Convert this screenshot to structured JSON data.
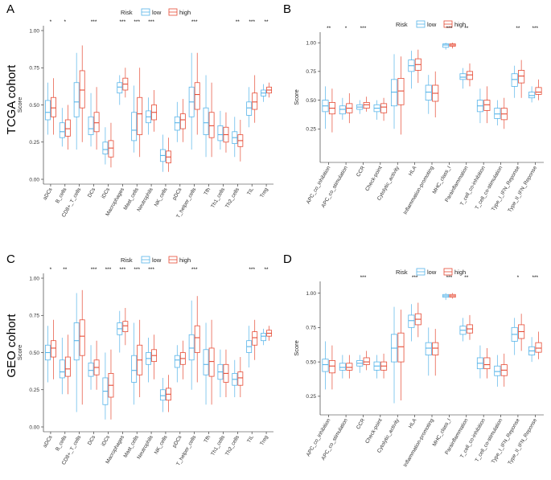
{
  "cohort_labels": [
    "TCGA cohort",
    "GEO cohort"
  ],
  "colors": {
    "low": "#56B4E9",
    "high": "#E64B35"
  },
  "chart_data": [
    {
      "panel": "A",
      "type": "box",
      "ylabel": "Score",
      "ylim": [
        0,
        1
      ],
      "yticks": [
        "0.00",
        "0.25",
        "0.50",
        "0.75",
        "1.00"
      ],
      "legend": {
        "title": "Risk",
        "entries": [
          "low",
          "high"
        ],
        "placement": "top"
      },
      "categories": [
        "aDCs",
        "B_cells",
        "CD8+_T_cells",
        "DCs",
        "iDCs",
        "Macrophages",
        "Mast_cells",
        "Neutrophils",
        "NK_cells",
        "pDCs",
        "T_helper_cells",
        "Tfh",
        "Th1_cells",
        "Th2_cells",
        "TIL",
        "Treg"
      ],
      "significance": [
        "*",
        "*",
        "",
        "***",
        "",
        "***",
        "***",
        "***",
        "",
        "",
        "***",
        "",
        "",
        "**",
        "***",
        "**"
      ],
      "series": [
        {
          "name": "low",
          "boxes": [
            [
              0.3,
              0.4,
              0.45,
              0.53,
              0.65
            ],
            [
              0.22,
              0.28,
              0.32,
              0.38,
              0.48
            ],
            [
              0.2,
              0.42,
              0.52,
              0.65,
              0.85
            ],
            [
              0.22,
              0.3,
              0.34,
              0.42,
              0.58
            ],
            [
              0.1,
              0.17,
              0.2,
              0.25,
              0.35
            ],
            [
              0.5,
              0.58,
              0.62,
              0.65,
              0.7
            ],
            [
              0.18,
              0.26,
              0.33,
              0.45,
              0.63
            ],
            [
              0.3,
              0.38,
              0.42,
              0.46,
              0.55
            ],
            [
              0.05,
              0.12,
              0.16,
              0.2,
              0.3
            ],
            [
              0.25,
              0.33,
              0.38,
              0.42,
              0.52
            ],
            [
              0.2,
              0.42,
              0.52,
              0.62,
              0.85
            ],
            [
              0.15,
              0.3,
              0.38,
              0.48,
              0.7
            ],
            [
              0.2,
              0.26,
              0.3,
              0.36,
              0.46
            ],
            [
              0.15,
              0.24,
              0.28,
              0.32,
              0.42
            ],
            [
              0.35,
              0.43,
              0.48,
              0.52,
              0.62
            ],
            [
              0.52,
              0.56,
              0.58,
              0.6,
              0.64
            ]
          ]
        },
        {
          "name": "high",
          "boxes": [
            [
              0.3,
              0.42,
              0.48,
              0.55,
              0.68
            ],
            [
              0.2,
              0.29,
              0.34,
              0.4,
              0.5
            ],
            [
              0.25,
              0.48,
              0.6,
              0.73,
              0.9
            ],
            [
              0.2,
              0.32,
              0.38,
              0.45,
              0.62
            ],
            [
              0.08,
              0.15,
              0.21,
              0.26,
              0.38
            ],
            [
              0.55,
              0.6,
              0.64,
              0.68,
              0.75
            ],
            [
              0.15,
              0.3,
              0.44,
              0.55,
              0.75
            ],
            [
              0.32,
              0.4,
              0.45,
              0.5,
              0.6
            ],
            [
              0.05,
              0.11,
              0.15,
              0.19,
              0.28
            ],
            [
              0.25,
              0.34,
              0.4,
              0.44,
              0.54
            ],
            [
              0.3,
              0.47,
              0.57,
              0.65,
              0.85
            ],
            [
              0.15,
              0.28,
              0.36,
              0.45,
              0.65
            ],
            [
              0.18,
              0.25,
              0.3,
              0.35,
              0.45
            ],
            [
              0.12,
              0.22,
              0.26,
              0.3,
              0.4
            ],
            [
              0.38,
              0.47,
              0.52,
              0.58,
              0.7
            ],
            [
              0.55,
              0.58,
              0.6,
              0.62,
              0.65
            ]
          ]
        }
      ]
    },
    {
      "panel": "B",
      "type": "box",
      "ylabel": "Score",
      "ylim": [
        0,
        1.05
      ],
      "yticks": [
        "0.25",
        "0.50",
        "0.75",
        "1.00"
      ],
      "legend": {
        "title": "Risk",
        "entries": [
          "low",
          "high"
        ],
        "placement": "top"
      },
      "categories": [
        "APC_co_inhibition",
        "APC_co_stimulation",
        "CCR",
        "Check-point",
        "Cytolytic_activity",
        "HLA",
        "Inflammation-promoting",
        "MHC_class_I",
        "Parainflammation",
        "T_cell_co-inhibition",
        "T_cell_co-stimulation",
        "Type_I_IFN_Reponse",
        "Type_II_IFN_Reponse"
      ],
      "significance": [
        "**",
        "*",
        "***",
        "",
        "",
        "",
        "",
        "***",
        "**",
        "",
        "",
        "**",
        "***"
      ],
      "series": [
        {
          "name": "low",
          "boxes": [
            [
              0.25,
              0.4,
              0.45,
              0.5,
              0.62
            ],
            [
              0.33,
              0.38,
              0.42,
              0.45,
              0.52
            ],
            [
              0.38,
              0.42,
              0.44,
              0.46,
              0.5
            ],
            [
              0.33,
              0.4,
              0.43,
              0.46,
              0.5
            ],
            [
              0.25,
              0.45,
              0.57,
              0.68,
              0.9
            ],
            [
              0.6,
              0.75,
              0.8,
              0.85,
              0.93
            ],
            [
              0.38,
              0.5,
              0.57,
              0.63,
              0.72
            ],
            [
              0.94,
              0.96,
              0.98,
              0.99,
              1.0
            ],
            [
              0.6,
              0.68,
              0.7,
              0.73,
              0.78
            ],
            [
              0.3,
              0.4,
              0.45,
              0.5,
              0.6
            ],
            [
              0.28,
              0.34,
              0.38,
              0.43,
              0.5
            ],
            [
              0.52,
              0.62,
              0.68,
              0.73,
              0.8
            ],
            [
              0.48,
              0.52,
              0.54,
              0.57,
              0.62
            ]
          ]
        },
        {
          "name": "high",
          "boxes": [
            [
              0.22,
              0.38,
              0.43,
              0.48,
              0.6
            ],
            [
              0.3,
              0.39,
              0.43,
              0.47,
              0.56
            ],
            [
              0.4,
              0.43,
              0.46,
              0.48,
              0.53
            ],
            [
              0.32,
              0.39,
              0.44,
              0.47,
              0.52
            ],
            [
              0.2,
              0.46,
              0.58,
              0.69,
              0.88
            ],
            [
              0.65,
              0.76,
              0.81,
              0.86,
              0.94
            ],
            [
              0.35,
              0.49,
              0.56,
              0.63,
              0.75
            ],
            [
              0.95,
              0.97,
              0.98,
              0.99,
              1.0
            ],
            [
              0.62,
              0.68,
              0.72,
              0.75,
              0.82
            ],
            [
              0.3,
              0.41,
              0.46,
              0.5,
              0.62
            ],
            [
              0.25,
              0.33,
              0.38,
              0.43,
              0.52
            ],
            [
              0.52,
              0.65,
              0.71,
              0.76,
              0.85
            ],
            [
              0.5,
              0.55,
              0.57,
              0.61,
              0.68
            ]
          ]
        }
      ]
    },
    {
      "panel": "C",
      "type": "box",
      "ylabel": "Score",
      "ylim": [
        0,
        1
      ],
      "yticks": [
        "0.00",
        "0.25",
        "0.50",
        "0.75",
        "1.00"
      ],
      "legend": {
        "title": "Risk",
        "entries": [
          "low",
          "high"
        ],
        "placement": "top"
      },
      "categories": [
        "aDCs",
        "B_cells",
        "CD8+_T_cells",
        "DCs",
        "iDCs",
        "Macrophages",
        "Mast_cells",
        "Neutrophils",
        "NK_cells",
        "pDCs",
        "T_helper_cells",
        "Tfh",
        "Th1_cells",
        "Th2_cells",
        "TIL",
        "Treg"
      ],
      "significance": [
        "*",
        "**",
        "",
        "***",
        "***",
        "***",
        "***",
        "***",
        "",
        "",
        "***",
        "",
        "",
        "",
        "***",
        "**"
      ],
      "series": [
        {
          "name": "low",
          "boxes": [
            [
              0.3,
              0.45,
              0.5,
              0.55,
              0.68
            ],
            [
              0.22,
              0.33,
              0.37,
              0.45,
              0.6
            ],
            [
              0.1,
              0.45,
              0.58,
              0.7,
              0.9
            ],
            [
              0.25,
              0.34,
              0.38,
              0.43,
              0.55
            ],
            [
              0.05,
              0.15,
              0.24,
              0.33,
              0.5
            ],
            [
              0.5,
              0.62,
              0.66,
              0.7,
              0.78
            ],
            [
              0.15,
              0.3,
              0.38,
              0.48,
              0.7
            ],
            [
              0.3,
              0.42,
              0.46,
              0.5,
              0.6
            ],
            [
              0.1,
              0.18,
              0.21,
              0.25,
              0.33
            ],
            [
              0.3,
              0.4,
              0.45,
              0.48,
              0.55
            ],
            [
              0.25,
              0.45,
              0.53,
              0.62,
              0.85
            ],
            [
              0.15,
              0.35,
              0.42,
              0.52,
              0.7
            ],
            [
              0.2,
              0.32,
              0.37,
              0.42,
              0.52
            ],
            [
              0.2,
              0.28,
              0.32,
              0.36,
              0.45
            ],
            [
              0.4,
              0.5,
              0.54,
              0.58,
              0.68
            ],
            [
              0.55,
              0.58,
              0.61,
              0.63,
              0.66
            ]
          ]
        },
        {
          "name": "high",
          "boxes": [
            [
              0.32,
              0.47,
              0.53,
              0.58,
              0.72
            ],
            [
              0.22,
              0.34,
              0.39,
              0.47,
              0.62
            ],
            [
              0.15,
              0.48,
              0.61,
              0.72,
              0.92
            ],
            [
              0.25,
              0.35,
              0.4,
              0.45,
              0.58
            ],
            [
              0.05,
              0.2,
              0.28,
              0.36,
              0.52
            ],
            [
              0.55,
              0.64,
              0.68,
              0.71,
              0.8
            ],
            [
              0.2,
              0.35,
              0.45,
              0.55,
              0.72
            ],
            [
              0.32,
              0.44,
              0.48,
              0.52,
              0.62
            ],
            [
              0.1,
              0.18,
              0.22,
              0.26,
              0.35
            ],
            [
              0.32,
              0.42,
              0.46,
              0.5,
              0.58
            ],
            [
              0.3,
              0.5,
              0.6,
              0.68,
              0.88
            ],
            [
              0.15,
              0.34,
              0.44,
              0.53,
              0.72
            ],
            [
              0.2,
              0.3,
              0.36,
              0.42,
              0.52
            ],
            [
              0.2,
              0.28,
              0.33,
              0.37,
              0.47
            ],
            [
              0.45,
              0.55,
              0.6,
              0.64,
              0.72
            ],
            [
              0.58,
              0.61,
              0.63,
              0.65,
              0.68
            ]
          ]
        }
      ]
    },
    {
      "panel": "D",
      "type": "box",
      "ylabel": "Score",
      "ylim": [
        0.15,
        1.05
      ],
      "yticks": [
        "0.25",
        "0.50",
        "0.75",
        "1.00"
      ],
      "legend": {
        "title": "Risk",
        "entries": [
          "low",
          "high"
        ],
        "placement": "top"
      },
      "categories": [
        "APC_co_inhibition",
        "APC_co_stimulation",
        "CCR",
        "Check-point",
        "Cytolytic_activity",
        "HLA",
        "Inflammation-promoting",
        "MHC_class_I",
        "Parainflammation",
        "T_cell_co-inhibition",
        "T_cell_co-stimulation",
        "Type_I_IFN_Reponse",
        "Type_II_IFN_Reponse"
      ],
      "significance": [
        "",
        "",
        "***",
        "",
        "",
        "***",
        "",
        "***",
        "**",
        "",
        "",
        "*",
        "***"
      ],
      "series": [
        {
          "name": "low",
          "boxes": [
            [
              0.3,
              0.43,
              0.48,
              0.52,
              0.65
            ],
            [
              0.38,
              0.44,
              0.46,
              0.49,
              0.55
            ],
            [
              0.42,
              0.47,
              0.49,
              0.51,
              0.55
            ],
            [
              0.38,
              0.44,
              0.47,
              0.5,
              0.55
            ],
            [
              0.2,
              0.5,
              0.6,
              0.7,
              0.9
            ],
            [
              0.65,
              0.75,
              0.8,
              0.84,
              0.92
            ],
            [
              0.4,
              0.55,
              0.6,
              0.64,
              0.75
            ],
            [
              0.95,
              0.97,
              0.98,
              0.99,
              1.0
            ],
            [
              0.65,
              0.7,
              0.73,
              0.76,
              0.82
            ],
            [
              0.38,
              0.45,
              0.49,
              0.53,
              0.62
            ],
            [
              0.32,
              0.4,
              0.43,
              0.47,
              0.55
            ],
            [
              0.55,
              0.65,
              0.7,
              0.75,
              0.82
            ],
            [
              0.5,
              0.55,
              0.58,
              0.61,
              0.68
            ]
          ]
        },
        {
          "name": "high",
          "boxes": [
            [
              0.3,
              0.42,
              0.47,
              0.51,
              0.62
            ],
            [
              0.38,
              0.44,
              0.46,
              0.49,
              0.55
            ],
            [
              0.44,
              0.48,
              0.5,
              0.53,
              0.58
            ],
            [
              0.38,
              0.44,
              0.47,
              0.5,
              0.56
            ],
            [
              0.22,
              0.5,
              0.61,
              0.71,
              0.88
            ],
            [
              0.68,
              0.77,
              0.81,
              0.85,
              0.93
            ],
            [
              0.4,
              0.55,
              0.6,
              0.64,
              0.74
            ],
            [
              0.96,
              0.97,
              0.98,
              0.99,
              1.0
            ],
            [
              0.66,
              0.71,
              0.74,
              0.77,
              0.84
            ],
            [
              0.38,
              0.45,
              0.48,
              0.53,
              0.6
            ],
            [
              0.32,
              0.4,
              0.44,
              0.48,
              0.56
            ],
            [
              0.58,
              0.67,
              0.72,
              0.77,
              0.85
            ],
            [
              0.52,
              0.57,
              0.6,
              0.64,
              0.72
            ]
          ]
        }
      ]
    }
  ]
}
